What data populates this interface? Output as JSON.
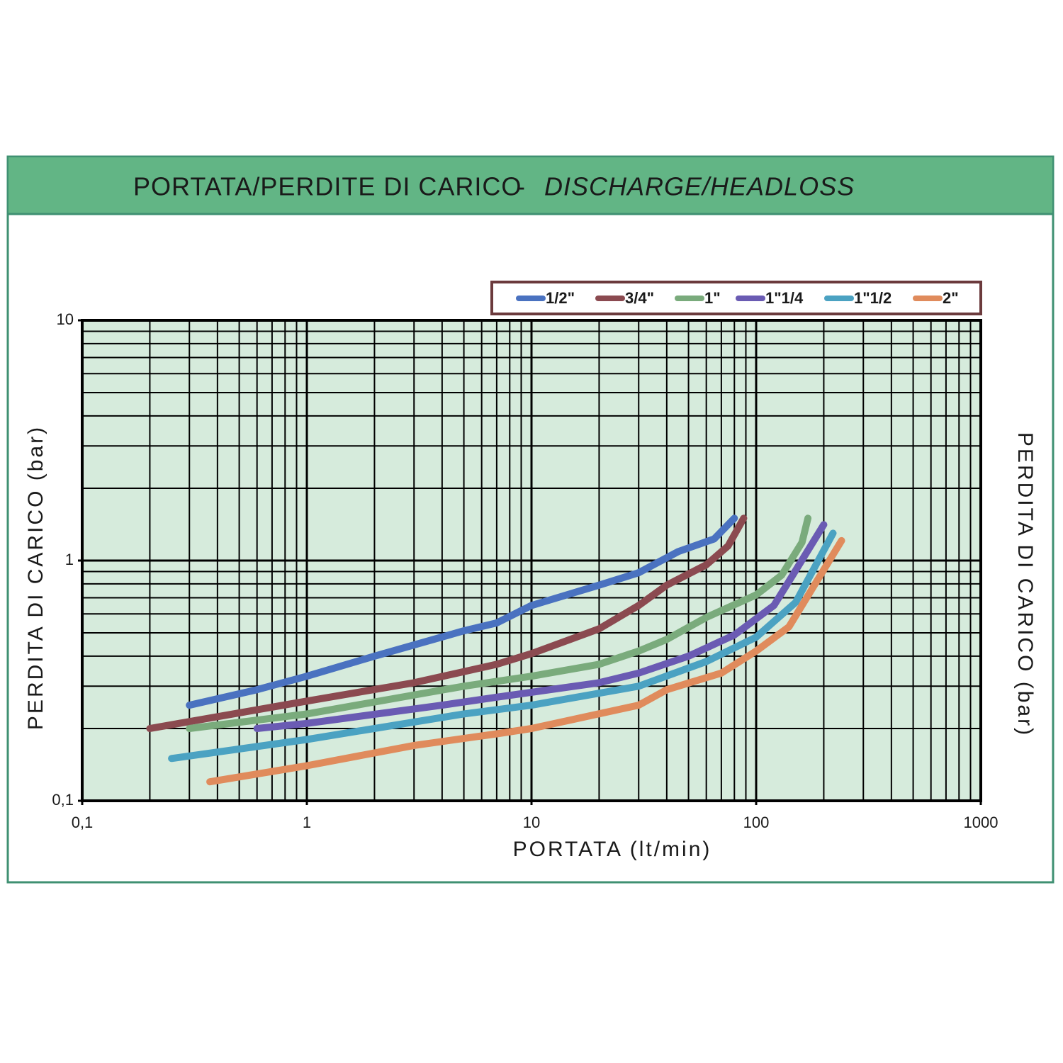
{
  "chart_data": {
    "type": "line",
    "title": "PORTATA/PERDITE DI CARICO",
    "title_separator": "-",
    "title_english": "DISCHARGE/HEADLOSS",
    "x_label": "PORTATA (lt/min)",
    "y_label": "PERDITA DI CARICO (bar)",
    "x_scale": "log",
    "y_scale": "log",
    "grid": true,
    "legend_position": "top-right",
    "xlim": [
      0.1,
      1000
    ],
    "ylim": [
      0.1,
      10
    ],
    "xticks": [
      {
        "value": 0.1,
        "label": "0,1"
      },
      1,
      10,
      100,
      1000
    ],
    "yticks": [
      {
        "value": 0.1,
        "label": "0,1"
      },
      1,
      10
    ],
    "series": [
      {
        "name": "1/2\"",
        "color": "#4a72c0",
        "x": [
          0.3,
          0.6,
          1,
          2,
          5,
          7,
          10,
          20,
          30,
          45,
          65,
          80
        ],
        "values": [
          0.25,
          0.29,
          0.33,
          0.4,
          0.51,
          0.55,
          0.65,
          0.79,
          0.89,
          1.09,
          1.23,
          1.5
        ]
      },
      {
        "name": "3/4\"",
        "color": "#8b4a50",
        "x": [
          0.2,
          1,
          3,
          7,
          10,
          20,
          30,
          40,
          60,
          75,
          88
        ],
        "values": [
          0.2,
          0.26,
          0.31,
          0.37,
          0.41,
          0.52,
          0.65,
          0.79,
          0.96,
          1.15,
          1.5
        ]
      },
      {
        "name": "1\"",
        "color": "#7aab7c",
        "x": [
          0.3,
          1,
          5,
          10,
          20,
          30,
          40,
          60,
          100,
          130,
          160,
          170
        ],
        "values": [
          0.2,
          0.23,
          0.3,
          0.33,
          0.37,
          0.42,
          0.47,
          0.58,
          0.72,
          0.87,
          1.19,
          1.5
        ]
      },
      {
        "name": "1\"1/4",
        "color": "#6a5bb3",
        "x": [
          0.6,
          1,
          4,
          7,
          20,
          30,
          50,
          80,
          120,
          140,
          200
        ],
        "values": [
          0.2,
          0.21,
          0.25,
          0.27,
          0.31,
          0.34,
          0.4,
          0.49,
          0.65,
          0.82,
          1.41
        ]
      },
      {
        "name": "1\"1/2",
        "color": "#4ba2c2",
        "x": [
          0.25,
          1,
          5,
          10,
          30,
          60,
          100,
          150,
          220
        ],
        "values": [
          0.15,
          0.18,
          0.23,
          0.25,
          0.3,
          0.38,
          0.48,
          0.67,
          1.3
        ]
      },
      {
        "name": "2\"",
        "color": "#e08b5c",
        "x": [
          0.37,
          1,
          3,
          7,
          10,
          30,
          40,
          70,
          100,
          140,
          240
        ],
        "values": [
          0.12,
          0.14,
          0.17,
          0.19,
          0.2,
          0.25,
          0.29,
          0.34,
          0.42,
          0.53,
          1.21
        ]
      }
    ]
  }
}
